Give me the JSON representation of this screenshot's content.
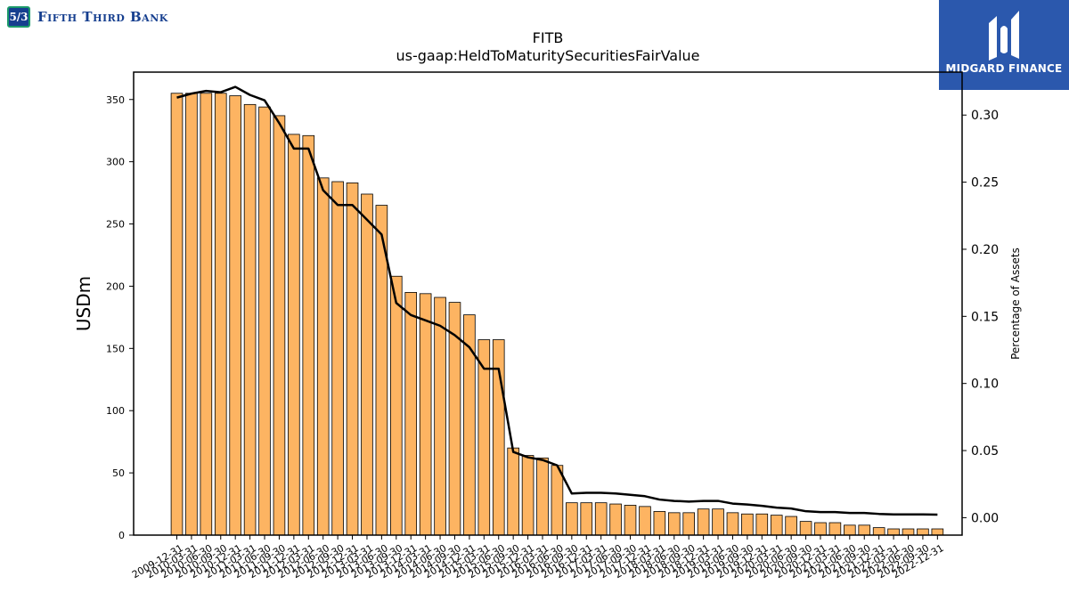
{
  "header": {
    "bank_logo_mark": "5/3",
    "bank_name": "Fifth Third Bank",
    "partner_logo_text": "MIDGARD FINANCE"
  },
  "chart_data": {
    "type": "bar",
    "title": "FITB",
    "subtitle": "us-gaap:HeldToMaturitySecuritiesFairValue",
    "ylabel": "USDm",
    "y2label": "Percentage of Assets",
    "ylim": [
      0,
      372
    ],
    "y2lim": [
      -0.013,
      0.332
    ],
    "yticks": [
      0,
      50,
      100,
      150,
      200,
      250,
      300,
      350
    ],
    "y2ticks": [
      0.0,
      0.05,
      0.1,
      0.15,
      0.2,
      0.25,
      0.3
    ],
    "y2tick_labels": [
      "0.00",
      "0.05",
      "0.10",
      "0.15",
      "0.20",
      "0.25",
      "0.30"
    ],
    "bar_color": "#fdb462",
    "line_color": "#000000",
    "categories": [
      "2009-12-31",
      "2010-03-31",
      "2010-06-30",
      "2010-09-30",
      "2010-12-31",
      "2011-03-31",
      "2011-06-30",
      "2011-09-30",
      "2011-12-31",
      "2012-03-31",
      "2012-06-30",
      "2012-09-30",
      "2012-12-31",
      "2013-03-31",
      "2013-06-30",
      "2013-09-30",
      "2013-12-31",
      "2014-03-31",
      "2014-06-30",
      "2014-09-30",
      "2014-12-31",
      "2015-03-31",
      "2015-06-30",
      "2015-09-30",
      "2015-12-31",
      "2016-03-31",
      "2016-06-30",
      "2016-09-30",
      "2016-12-31",
      "2017-03-31",
      "2017-06-30",
      "2017-09-30",
      "2017-12-31",
      "2018-03-31",
      "2018-06-30",
      "2018-09-30",
      "2018-12-31",
      "2019-03-31",
      "2019-06-30",
      "2019-09-30",
      "2019-12-31",
      "2020-03-31",
      "2020-06-30",
      "2020-09-30",
      "2020-12-31",
      "2021-03-31",
      "2021-06-30",
      "2021-09-30",
      "2021-12-31",
      "2022-03-31",
      "2022-06-30",
      "2022-09-30",
      "2022-12-31"
    ],
    "tick_labels": [
      "2009-12-31",
      "2010-03-31",
      "2010-06-30",
      "2010-09-30",
      "2010-12-31",
      "2011-03-31",
      "2011-06-30",
      "2011-09-30",
      "2011-12-31",
      "2012-03-31",
      "2012-06-30",
      "2012-09-30",
      "2012-12-31",
      "2013-03-31",
      "2013-06-30",
      "2013-09-30",
      "2013-12-31",
      "2014-03-31",
      "2014-06-30",
      "2014-09-30",
      "2014-12-31",
      "2015-03-31",
      "2015-06-30",
      "2015-09-30",
      "2015-12-31",
      "2016-03-31",
      "2016-06-30",
      "2016-09-30",
      "2016-12-31",
      "2017-03-31",
      "2017-06-30",
      "2017-09-30",
      "2017-12-31",
      "2018-03-31",
      "2018-06-30",
      "2018-09-30",
      "2018-12-31",
      "2019-03-31",
      "2019-06-30",
      "2019-09-30",
      "2019-12-31",
      "2020-03-31",
      "2020-06-30",
      "2020-09-30",
      "2020-12-31",
      "2021-03-31",
      "2021-06-30",
      "2021-09-30",
      "2021-12-31",
      "2022-03-31",
      "2022-06-30",
      "2022-09-30",
      "2022-12-31"
    ],
    "series": [
      {
        "axis": "left",
        "type": "bar",
        "values": [
          355,
          355,
          355,
          355,
          353,
          346,
          344,
          337,
          322,
          321,
          287,
          284,
          283,
          274,
          265,
          208,
          195,
          194,
          191,
          187,
          177,
          157,
          157,
          70,
          64,
          62,
          56,
          26,
          26,
          26,
          25,
          24,
          23,
          19,
          18,
          18,
          21,
          21,
          18,
          17,
          17,
          16,
          15,
          11,
          10,
          10,
          8,
          8,
          6,
          5,
          5,
          5,
          5
        ]
      },
      {
        "axis": "right",
        "type": "line",
        "values": [
          0.313,
          0.316,
          0.318,
          0.317,
          0.321,
          0.315,
          0.311,
          0.294,
          0.275,
          0.275,
          0.244,
          0.233,
          0.233,
          0.222,
          0.211,
          0.16,
          0.151,
          0.147,
          0.143,
          0.136,
          0.127,
          0.111,
          0.111,
          0.049,
          0.045,
          0.043,
          0.039,
          0.018,
          0.0185,
          0.0185,
          0.018,
          0.017,
          0.016,
          0.0135,
          0.0125,
          0.012,
          0.0125,
          0.0125,
          0.0105,
          0.0098,
          0.0088,
          0.0075,
          0.0068,
          0.0048,
          0.0042,
          0.0042,
          0.0035,
          0.0035,
          0.0028,
          0.0024,
          0.0024,
          0.0024,
          0.0023
        ]
      }
    ]
  }
}
